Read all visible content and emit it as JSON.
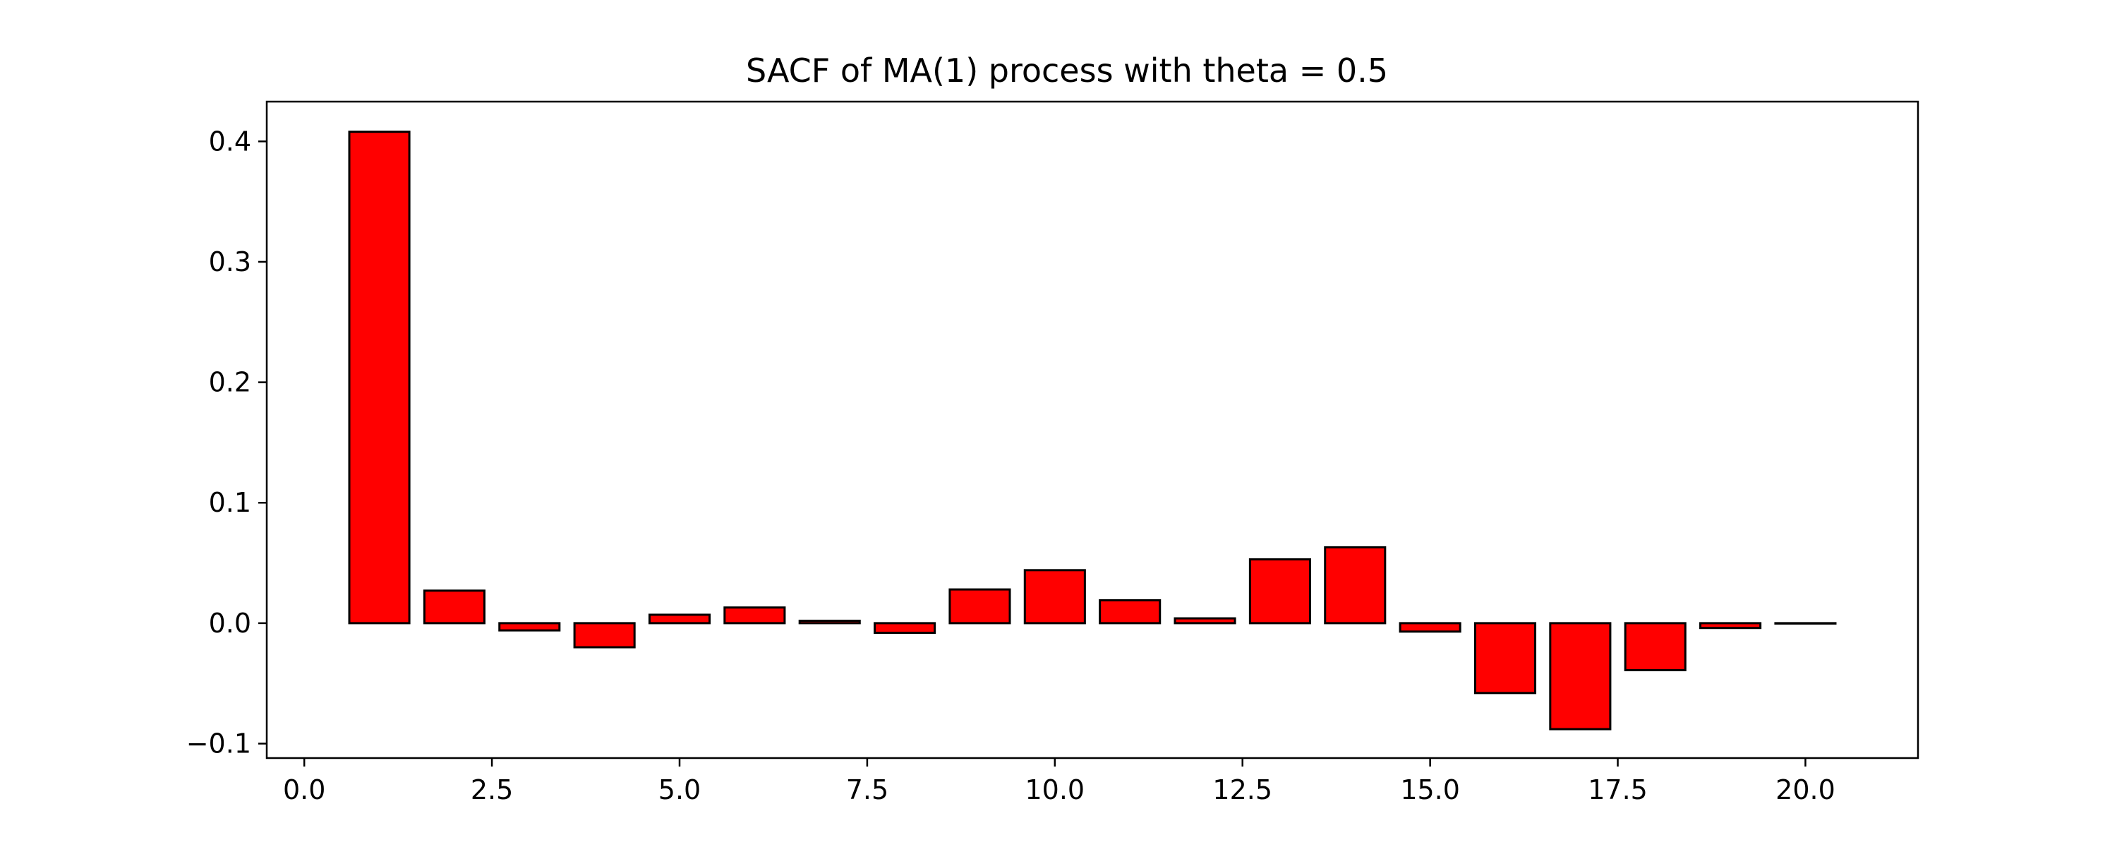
{
  "chart_data": {
    "type": "bar",
    "title": "SACF of MA(1) process with theta = 0.5",
    "xlabel": "",
    "ylabel": "",
    "x": [
      1,
      2,
      3,
      4,
      5,
      6,
      7,
      8,
      9,
      10,
      11,
      12,
      13,
      14,
      15,
      16,
      17,
      18,
      19,
      20
    ],
    "values": [
      0.408,
      0.027,
      -0.006,
      -0.02,
      0.007,
      0.013,
      0.002,
      -0.008,
      0.028,
      0.044,
      0.019,
      0.004,
      0.053,
      0.063,
      -0.007,
      -0.058,
      -0.088,
      -0.039,
      -0.004,
      0.0
    ],
    "bar_width": 0.8,
    "xlim": [
      -0.5,
      21.5
    ],
    "ylim": [
      -0.112,
      0.433
    ],
    "xticks": [
      0.0,
      2.5,
      5.0,
      7.5,
      10.0,
      12.5,
      15.0,
      17.5,
      20.0
    ],
    "xtick_labels": [
      "0.0",
      "2.5",
      "5.0",
      "7.5",
      "10.0",
      "12.5",
      "15.0",
      "17.5",
      "20.0"
    ],
    "yticks": [
      -0.1,
      0.0,
      0.1,
      0.2,
      0.3,
      0.4
    ],
    "ytick_labels": [
      "−0.1",
      "0.0",
      "0.1",
      "0.2",
      "0.3",
      "0.4"
    ],
    "grid": false,
    "bar_color": "#ff0000",
    "edge_color": "#000000"
  }
}
